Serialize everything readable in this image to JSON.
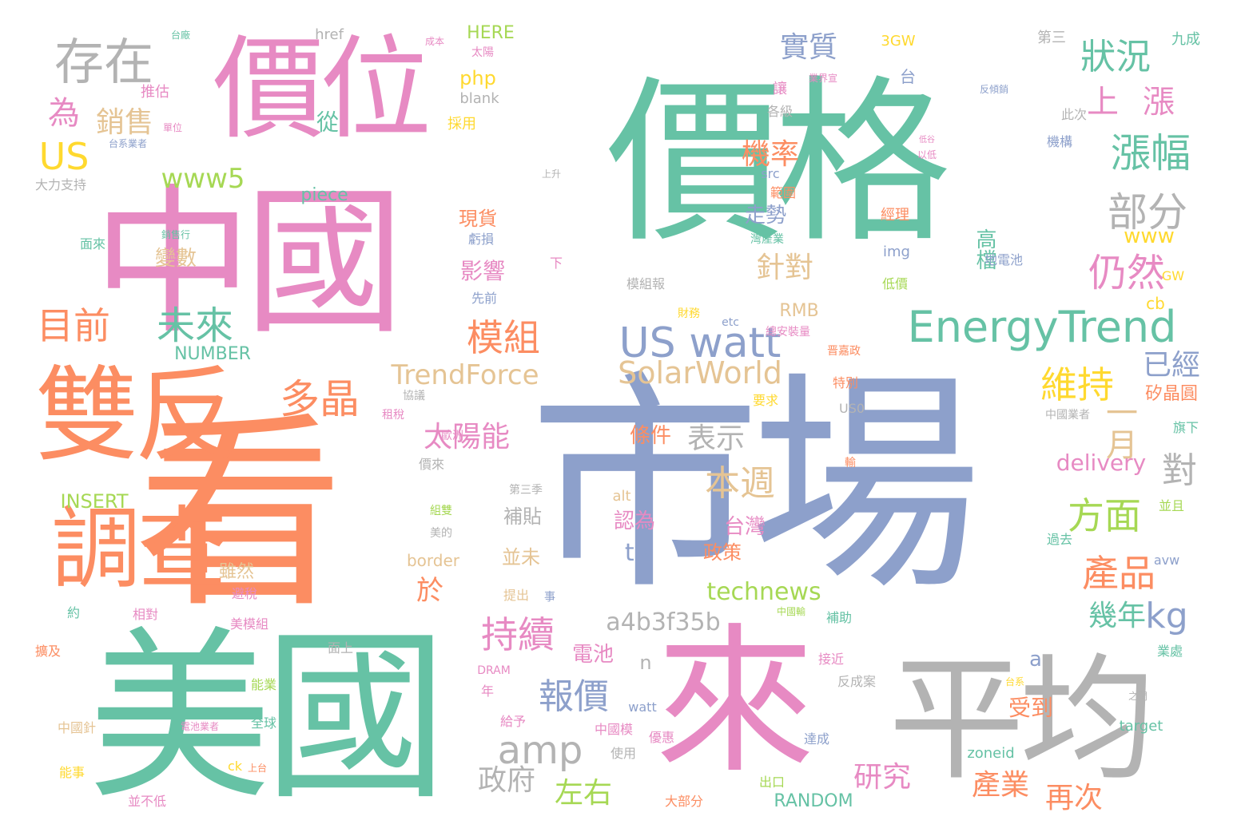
{
  "palette": {
    "green": "#66c2a5",
    "orange": "#fc8d62",
    "blue": "#8da0cb",
    "pink": "#e78ac3",
    "lime": "#a6d854",
    "yellow": "#ffd92f",
    "tan": "#e5c494",
    "gray": "#b3b3b3"
  },
  "words": [
    {
      "text": "價格",
      "weight": 1.0,
      "color": "green"
    },
    {
      "text": "市場",
      "weight": 0.95,
      "color": "blue"
    },
    {
      "text": "中國",
      "weight": 0.85,
      "color": "pink"
    },
    {
      "text": "看",
      "weight": 0.85,
      "color": "orange"
    },
    {
      "text": "美國",
      "weight": 0.8,
      "color": "green"
    },
    {
      "text": "來",
      "weight": 0.75,
      "color": "pink"
    },
    {
      "text": "平均",
      "weight": 0.72,
      "color": "gray"
    },
    {
      "text": "價位",
      "weight": 0.55,
      "color": "pink"
    },
    {
      "text": "雙反",
      "weight": 0.5,
      "color": "orange"
    },
    {
      "text": "調查",
      "weight": 0.45,
      "color": "orange"
    },
    {
      "text": "EnergyTrend",
      "weight": 0.3,
      "color": "green"
    },
    {
      "text": "US watt",
      "weight": 0.3,
      "color": "blue"
    },
    {
      "text": "存在",
      "weight": 0.25,
      "color": "gray"
    },
    {
      "text": "狀況",
      "weight": 0.22,
      "color": "green"
    },
    {
      "text": "漲幅",
      "weight": 0.22,
      "color": "green"
    },
    {
      "text": "部分",
      "weight": 0.22,
      "color": "gray"
    },
    {
      "text": "目前",
      "weight": 0.2,
      "color": "orange"
    },
    {
      "text": "未來",
      "weight": 0.2,
      "color": "green"
    },
    {
      "text": "模組",
      "weight": 0.2,
      "color": "orange"
    },
    {
      "text": "多晶",
      "weight": 0.2,
      "color": "orange"
    },
    {
      "text": "仍然",
      "weight": 0.2,
      "color": "pink"
    },
    {
      "text": "維持",
      "weight": 0.2,
      "color": "yellow"
    },
    {
      "text": "本週",
      "weight": 0.2,
      "color": "tan"
    },
    {
      "text": "方面",
      "weight": 0.2,
      "color": "lime"
    },
    {
      "text": "產品",
      "weight": 0.2,
      "color": "orange"
    },
    {
      "text": "持續",
      "weight": 0.2,
      "color": "pink"
    },
    {
      "text": "報價",
      "weight": 0.18,
      "color": "blue"
    },
    {
      "text": "amp",
      "weight": 0.18,
      "color": "gray"
    },
    {
      "text": "SolarWorld",
      "weight": 0.18,
      "color": "tan"
    },
    {
      "text": "TrendForce",
      "weight": 0.16,
      "color": "tan"
    },
    {
      "text": "US",
      "weight": 0.18,
      "color": "yellow"
    },
    {
      "text": "為",
      "weight": 0.16,
      "color": "pink"
    },
    {
      "text": "上漲",
      "weight": 0.16,
      "color": "pink"
    },
    {
      "text": "一月",
      "weight": 0.16,
      "color": "tan"
    },
    {
      "text": "對",
      "weight": 0.16,
      "color": "gray"
    },
    {
      "text": "kg",
      "weight": 0.16,
      "color": "blue"
    },
    {
      "text": "www5",
      "weight": 0.15,
      "color": "lime"
    },
    {
      "text": "銷售",
      "weight": 0.14,
      "color": "tan"
    },
    {
      "text": "實質",
      "weight": 0.14,
      "color": "blue"
    },
    {
      "text": "機率",
      "weight": 0.14,
      "color": "orange"
    },
    {
      "text": "針對",
      "weight": 0.14,
      "color": "tan"
    },
    {
      "text": "表示",
      "weight": 0.14,
      "color": "gray"
    },
    {
      "text": "太陽能",
      "weight": 0.14,
      "color": "pink"
    },
    {
      "text": "研究",
      "weight": 0.14,
      "color": "pink"
    },
    {
      "text": "再次",
      "weight": 0.14,
      "color": "orange"
    },
    {
      "text": "產業",
      "weight": 0.14,
      "color": "orange"
    },
    {
      "text": "左右",
      "weight": 0.14,
      "color": "lime"
    },
    {
      "text": "政府",
      "weight": 0.14,
      "color": "gray"
    },
    {
      "text": "幾年",
      "weight": 0.14,
      "color": "green"
    },
    {
      "text": "已經",
      "weight": 0.14,
      "color": "blue"
    },
    {
      "text": "technews",
      "weight": 0.12,
      "color": "lime"
    },
    {
      "text": "a4b3f35b",
      "weight": 0.12,
      "color": "gray"
    },
    {
      "text": "delivery",
      "weight": 0.12,
      "color": "pink"
    },
    {
      "text": "tw",
      "weight": 0.12,
      "color": "blue"
    },
    {
      "text": "從",
      "weight": 0.12,
      "color": "green"
    },
    {
      "text": "php",
      "weight": 0.1,
      "color": "yellow"
    },
    {
      "text": "www",
      "weight": 0.1,
      "color": "yellow"
    },
    {
      "text": "高檔",
      "weight": 0.1,
      "color": "green"
    },
    {
      "text": "影響",
      "weight": 0.1,
      "color": "pink"
    },
    {
      "text": "現貨",
      "weight": 0.1,
      "color": "orange"
    },
    {
      "text": "變數",
      "weight": 0.1,
      "color": "tan"
    },
    {
      "text": "走勢",
      "weight": 0.1,
      "color": "blue"
    },
    {
      "text": "條件",
      "weight": 0.1,
      "color": "orange"
    },
    {
      "text": "台灣",
      "weight": 0.1,
      "color": "pink"
    },
    {
      "text": "政策",
      "weight": 0.1,
      "color": "orange"
    },
    {
      "text": "認為",
      "weight": 0.1,
      "color": "pink"
    },
    {
      "text": "於",
      "weight": 0.1,
      "color": "orange"
    },
    {
      "text": "電池",
      "weight": 0.1,
      "color": "pink"
    },
    {
      "text": "受到",
      "weight": 0.1,
      "color": "orange"
    },
    {
      "text": "雖然",
      "weight": 0.1,
      "color": "tan"
    },
    {
      "text": "補貼",
      "weight": 0.1,
      "color": "gray"
    },
    {
      "text": "並未",
      "weight": 0.1,
      "color": "tan"
    },
    {
      "text": "矽晶圓",
      "weight": 0.08,
      "color": "orange"
    },
    {
      "text": "INSERT",
      "weight": 0.08,
      "color": "lime"
    },
    {
      "text": "NUMBER",
      "weight": 0.08,
      "color": "green"
    },
    {
      "text": "RANDOM",
      "weight": 0.08,
      "color": "green"
    },
    {
      "text": "HERE",
      "weight": 0.08,
      "color": "lime"
    },
    {
      "text": "piece",
      "weight": 0.08,
      "color": "green"
    },
    {
      "text": "border",
      "weight": 0.08,
      "color": "tan"
    },
    {
      "text": "RMB",
      "weight": 0.08,
      "color": "tan"
    },
    {
      "text": "cb",
      "weight": 0.08,
      "color": "yellow"
    },
    {
      "text": "a",
      "weight": 0.08,
      "color": "blue"
    },
    {
      "text": "n",
      "weight": 0.08,
      "color": "gray"
    },
    {
      "text": "3GW",
      "weight": 0.06,
      "color": "yellow"
    },
    {
      "text": "href",
      "weight": 0.06,
      "color": "gray"
    },
    {
      "text": "blank",
      "weight": 0.06,
      "color": "gray"
    },
    {
      "text": "src",
      "weight": 0.06,
      "color": "blue"
    },
    {
      "text": "img",
      "weight": 0.06,
      "color": "blue"
    },
    {
      "text": "alt",
      "weight": 0.06,
      "color": "tan"
    },
    {
      "text": "target",
      "weight": 0.06,
      "color": "green"
    },
    {
      "text": "zoneid",
      "weight": 0.06,
      "color": "green"
    },
    {
      "text": "watt",
      "weight": 0.06,
      "color": "blue"
    },
    {
      "text": "avw",
      "weight": 0.06,
      "color": "blue"
    },
    {
      "text": "GW",
      "weight": 0.06,
      "color": "yellow"
    },
    {
      "text": "US0",
      "weight": 0.06,
      "color": "gray"
    },
    {
      "text": "etc",
      "weight": 0.05,
      "color": "blue"
    },
    {
      "text": "DRAM",
      "weight": 0.05,
      "color": "pink"
    },
    {
      "text": "ck",
      "weight": 0.06,
      "color": "yellow"
    },
    {
      "text": "推估",
      "weight": 0.06,
      "color": "pink"
    },
    {
      "text": "採用",
      "weight": 0.06,
      "color": "yellow"
    },
    {
      "text": "太陽",
      "weight": 0.05,
      "color": "pink"
    },
    {
      "text": "成本",
      "weight": 0.05,
      "color": "pink"
    },
    {
      "text": "台廠",
      "weight": 0.05,
      "color": "green"
    },
    {
      "text": "第三",
      "weight": 0.06,
      "color": "gray"
    },
    {
      "text": "九成",
      "weight": 0.06,
      "color": "green"
    },
    {
      "text": "台",
      "weight": 0.06,
      "color": "blue"
    },
    {
      "text": "讓",
      "weight": 0.06,
      "color": "pink"
    },
    {
      "text": "各級",
      "weight": 0.06,
      "color": "gray"
    },
    {
      "text": "此次",
      "weight": 0.06,
      "color": "gray"
    },
    {
      "text": "機構",
      "weight": 0.06,
      "color": "blue"
    },
    {
      "text": "範圍",
      "weight": 0.06,
      "color": "orange"
    },
    {
      "text": "經理",
      "weight": 0.06,
      "color": "orange"
    },
    {
      "text": "地電池",
      "weight": 0.06,
      "color": "blue"
    },
    {
      "text": "低價",
      "weight": 0.06,
      "color": "lime"
    },
    {
      "text": "先前",
      "weight": 0.06,
      "color": "blue"
    },
    {
      "text": "虧損",
      "weight": 0.06,
      "color": "blue"
    },
    {
      "text": "下",
      "weight": 0.06,
      "color": "pink"
    },
    {
      "text": "上升",
      "weight": 0.05,
      "color": "gray"
    },
    {
      "text": "模組報",
      "weight": 0.06,
      "color": "gray"
    },
    {
      "text": "財務",
      "weight": 0.06,
      "color": "yellow"
    },
    {
      "text": "總安裝量",
      "weight": 0.06,
      "color": "pink"
    },
    {
      "text": "晋嘉政",
      "weight": 0.05,
      "color": "orange"
    },
    {
      "text": "特別",
      "weight": 0.06,
      "color": "orange"
    },
    {
      "text": "要求",
      "weight": 0.06,
      "color": "yellow"
    },
    {
      "text": "協議",
      "weight": 0.06,
      "color": "gray"
    },
    {
      "text": "租稅",
      "weight": 0.06,
      "color": "pink"
    },
    {
      "text": "中國業者",
      "weight": 0.06,
      "color": "gray"
    },
    {
      "text": "旗下",
      "weight": 0.06,
      "color": "green"
    },
    {
      "text": "歐洲",
      "weight": 0.06,
      "color": "pink"
    },
    {
      "text": "第三季",
      "weight": 0.06,
      "color": "gray"
    },
    {
      "text": "價來",
      "weight": 0.06,
      "color": "gray"
    },
    {
      "text": "組雙",
      "weight": 0.06,
      "color": "lime"
    },
    {
      "text": "美的",
      "weight": 0.06,
      "color": "gray"
    },
    {
      "text": "提出",
      "weight": 0.06,
      "color": "tan"
    },
    {
      "text": "事",
      "weight": 0.05,
      "color": "blue"
    },
    {
      "text": "並且",
      "weight": 0.06,
      "color": "lime"
    },
    {
      "text": "過去",
      "weight": 0.06,
      "color": "green"
    },
    {
      "text": "大力支持",
      "weight": 0.06,
      "color": "gray"
    },
    {
      "text": "面來",
      "weight": 0.06,
      "color": "green"
    },
    {
      "text": "變數",
      "weight": 0.001,
      "color": "tan"
    },
    {
      "text": "相對",
      "weight": 0.06,
      "color": "pink"
    },
    {
      "text": "約",
      "weight": 0.06,
      "color": "green"
    },
    {
      "text": "美模組",
      "weight": 0.06,
      "color": "pink"
    },
    {
      "text": "避稅",
      "weight": 0.06,
      "color": "pink"
    },
    {
      "text": "面上",
      "weight": 0.06,
      "color": "gray"
    },
    {
      "text": "擴及",
      "weight": 0.06,
      "color": "orange"
    },
    {
      "text": "能業",
      "weight": 0.06,
      "color": "lime"
    },
    {
      "text": "全球",
      "weight": 0.06,
      "color": "green"
    },
    {
      "text": "中國針",
      "weight": 0.06,
      "color": "tan"
    },
    {
      "text": "能事",
      "weight": 0.06,
      "color": "yellow"
    },
    {
      "text": "並不低",
      "weight": 0.06,
      "color": "pink"
    },
    {
      "text": "上台",
      "weight": 0.05,
      "color": "orange"
    },
    {
      "text": "給予",
      "weight": 0.06,
      "color": "pink"
    },
    {
      "text": "中國模",
      "weight": 0.06,
      "color": "pink"
    },
    {
      "text": "使用",
      "weight": 0.06,
      "color": "gray"
    },
    {
      "text": "優惠",
      "weight": 0.06,
      "color": "pink"
    },
    {
      "text": "大部分",
      "weight": 0.06,
      "color": "orange"
    },
    {
      "text": "出口",
      "weight": 0.06,
      "color": "lime"
    },
    {
      "text": "達成",
      "weight": 0.06,
      "color": "blue"
    },
    {
      "text": "接近",
      "weight": 0.06,
      "color": "pink"
    },
    {
      "text": "反成案",
      "weight": 0.06,
      "color": "gray"
    },
    {
      "text": "補助",
      "weight": 0.06,
      "color": "green"
    },
    {
      "text": "中國輸",
      "weight": 0.05,
      "color": "lime"
    },
    {
      "text": "業處",
      "weight": 0.06,
      "color": "green"
    },
    {
      "text": "之間",
      "weight": 0.05,
      "color": "gray"
    },
    {
      "text": "年",
      "weight": 0.06,
      "color": "pink"
    },
    {
      "text": "台系業者",
      "weight": 0.05,
      "color": "blue"
    },
    {
      "text": "單位",
      "weight": 0.05,
      "color": "pink"
    },
    {
      "text": "銷售行",
      "weight": 0.05,
      "color": "green"
    },
    {
      "text": "電池業者",
      "weight": 0.05,
      "color": "pink"
    },
    {
      "text": "業界宣",
      "weight": 0.05,
      "color": "pink"
    },
    {
      "text": "台系",
      "weight": 0.05,
      "color": "yellow"
    },
    {
      "text": "輸",
      "weight": 0.05,
      "color": "orange"
    },
    {
      "text": "灣產業",
      "weight": 0.05,
      "color": "green"
    },
    {
      "text": "反傾銷",
      "weight": 0.05,
      "color": "blue"
    },
    {
      "text": "以低",
      "weight": 0.05,
      "color": "pink"
    },
    {
      "text": "低谷",
      "weight": 0.05,
      "color": "pink"
    }
  ]
}
